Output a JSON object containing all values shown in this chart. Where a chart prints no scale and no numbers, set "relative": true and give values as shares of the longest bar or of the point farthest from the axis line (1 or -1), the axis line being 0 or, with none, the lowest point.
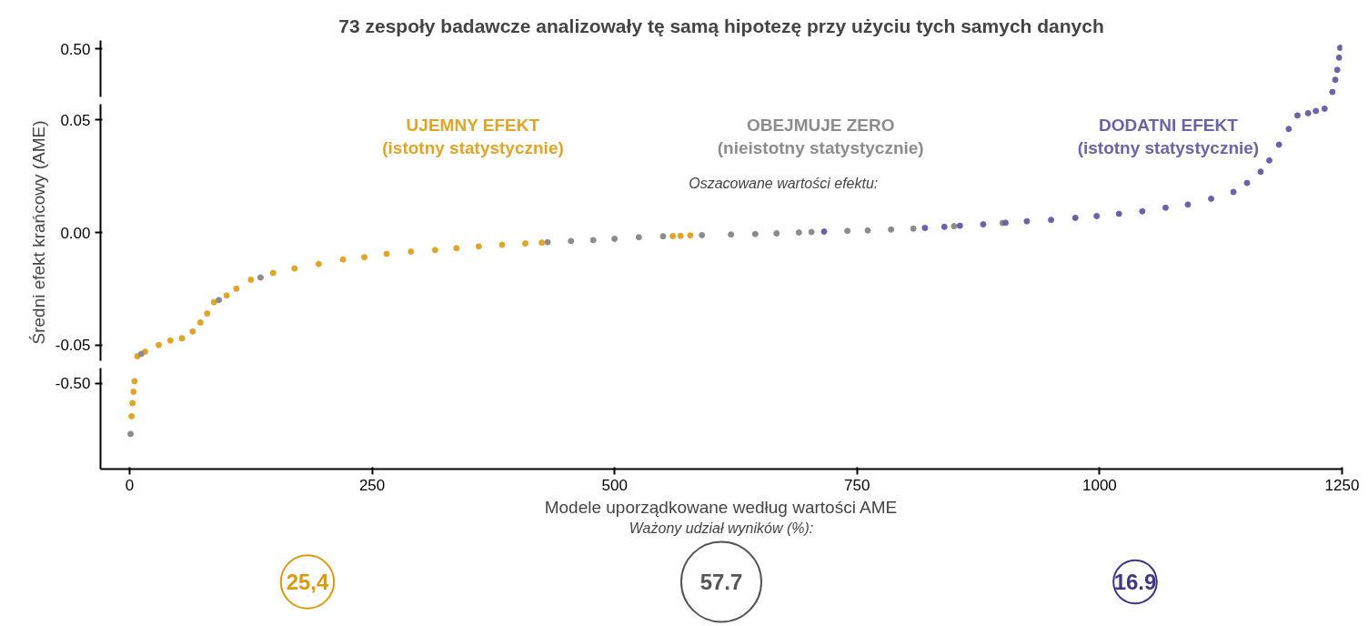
{
  "chart_data": [
    {
      "type": "scatter",
      "title": "73 zespoły badawcze analizowały tę samą hipotezę przy użyciu tych samych danych",
      "xlim": [
        -30,
        1250
      ],
      "xticks": [
        0,
        250,
        500,
        750,
        1000,
        1250
      ],
      "relative": true,
      "annotations": [
        "0.50"
      ],
      "tick_labels": false,
      "grid": false,
      "marker": "circle",
      "series": [
        {
          "color": "#6b63a8",
          "x": [
            1240,
            1243,
            1245,
            1247,
            1248
          ],
          "values": [
            0.1,
            0.35,
            0.55,
            0.8,
            1.0
          ]
        }
      ]
    },
    {
      "type": "scatter",
      "ylabel": "Średni efekt krańcowy (AME)",
      "annotations": [
        "Oszacowane wartości efektu:"
      ],
      "marker": "circle",
      "xlim": [
        -30,
        1250
      ],
      "xticks": [
        0,
        250,
        500,
        750,
        1000,
        1250
      ],
      "ylim": [
        -0.057,
        0.057
      ],
      "yticks": [
        {
          "value": -0.05,
          "label": "-0.05"
        },
        {
          "value": 0,
          "label": "0.00"
        },
        {
          "value": 0.05,
          "label": "0.05"
        }
      ],
      "tick_labels": "y",
      "grid": false,
      "legend": "top",
      "series": [
        {
          "name": "UJEMNY EFEKT\n(istotny statystycznie)",
          "color": "#e0a526",
          "x": [
            8,
            16,
            30,
            42,
            54,
            65,
            73,
            80,
            87,
            100,
            110,
            125,
            148,
            170,
            195,
            220,
            242,
            265,
            290,
            315,
            337,
            360,
            384,
            408,
            425,
            560,
            568,
            578
          ],
          "values": [
            -0.055,
            -0.053,
            -0.05,
            -0.048,
            -0.047,
            -0.044,
            -0.04,
            -0.036,
            -0.031,
            -0.028,
            -0.025,
            -0.021,
            -0.018,
            -0.016,
            -0.014,
            -0.012,
            -0.011,
            -0.0095,
            -0.0085,
            -0.0078,
            -0.007,
            -0.0062,
            -0.0055,
            -0.0049,
            -0.0045,
            -0.0016,
            -0.0015,
            -0.0013
          ]
        },
        {
          "name": "OBEJMUJE ZERO\n(nieistotny statystycznie)",
          "color": "#8c8c8c",
          "x": [
            12,
            92,
            135,
            431,
            455,
            478,
            500,
            525,
            550,
            590,
            620,
            645,
            667,
            690,
            703,
            740,
            761,
            785,
            808,
            850,
            900
          ],
          "values": [
            -0.054,
            -0.03,
            -0.02,
            -0.0043,
            -0.0038,
            -0.0034,
            -0.0028,
            -0.0021,
            -0.0017,
            -0.0012,
            -0.0009,
            -0.0007,
            -0.0004,
            0.0,
            0.0002,
            0.0007,
            0.0009,
            0.0013,
            0.0017,
            0.0028,
            0.0042
          ]
        },
        {
          "name": "DODATNI EFEKT\n(istotny statystycznie)",
          "color": "#6b63a8",
          "x": [
            716,
            820,
            840,
            856,
            880,
            903,
            925,
            950,
            975,
            997,
            1020,
            1044,
            1068,
            1091,
            1115,
            1138,
            1152,
            1166,
            1175,
            1185,
            1195,
            1204,
            1215,
            1223,
            1232
          ],
          "values": [
            0.0004,
            0.002,
            0.0025,
            0.003,
            0.0036,
            0.0043,
            0.005,
            0.0056,
            0.0065,
            0.0073,
            0.0083,
            0.0094,
            0.011,
            0.0124,
            0.015,
            0.018,
            0.022,
            0.027,
            0.032,
            0.039,
            0.046,
            0.052,
            0.053,
            0.054,
            0.055
          ]
        }
      ]
    },
    {
      "type": "scatter",
      "xlabel": "Modele uporządkowane według wartości AME",
      "marker": "circle",
      "xlim": [
        -30,
        1250
      ],
      "xticks": [
        0,
        250,
        500,
        750,
        1000,
        1250
      ],
      "relative": true,
      "annotations": [
        "-0.50"
      ],
      "tick_labels": "x",
      "grid": false,
      "series": [
        {
          "color": "#e0a526",
          "x": [
            2,
            3,
            4,
            5
          ],
          "values": [
            0.6,
            0.75,
            0.88,
            1.0
          ]
        },
        {
          "color": "#8c8c8c",
          "x": [
            1
          ],
          "values": [
            0.4
          ]
        }
      ]
    },
    {
      "type": "other",
      "title": "Ważony udział wyników (%):",
      "categories": [
        null,
        null,
        null
      ],
      "values": [
        25.4,
        57.7,
        16.9
      ],
      "value_labels": [
        "25,4",
        "57.7",
        "16.9"
      ],
      "colors": [
        "#d99a0b",
        "#555555",
        "#3f3783"
      ]
    }
  ]
}
